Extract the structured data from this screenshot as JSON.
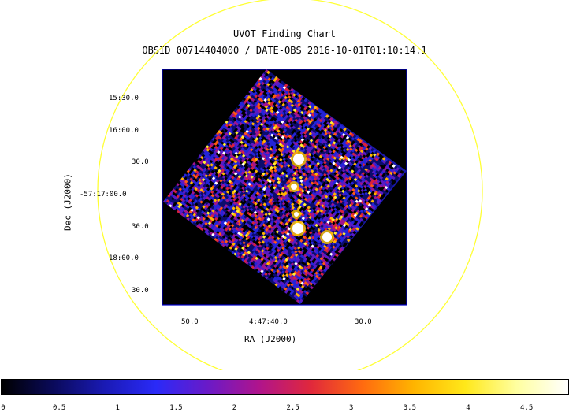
{
  "chart": {
    "title": "UVOT Finding Chart",
    "subtitle": "OBSID 00714404000 / DATE-OBS 2016-10-01T01:10:14.1",
    "x_label": "RA (J2000)",
    "y_label": "Dec (J2000)",
    "x_ticks": [
      "50.0",
      "4:47:40.0",
      "30.0"
    ],
    "y_ticks": [
      "15:30.0",
      "16:00.0",
      "30.0",
      "-57:17:00.0",
      "30.0",
      "18:00.0",
      "30.0"
    ]
  },
  "colorbar": {
    "ticks": [
      "0",
      "0.5",
      "1",
      "1.5",
      "2",
      "2.5",
      "3",
      "3.5",
      "4",
      "4.5"
    ],
    "colormap": [
      "#000000",
      "#0a0a5a",
      "#1a1ab4",
      "#2a2af8",
      "#6a1ac8",
      "#b0148c",
      "#e0283c",
      "#ff6a10",
      "#ffb400",
      "#ffe81a",
      "#ffffa0",
      "#ffffff"
    ]
  },
  "colors": {
    "circle": "#ffff33",
    "frame": "#0000cc",
    "background": "#000000"
  }
}
